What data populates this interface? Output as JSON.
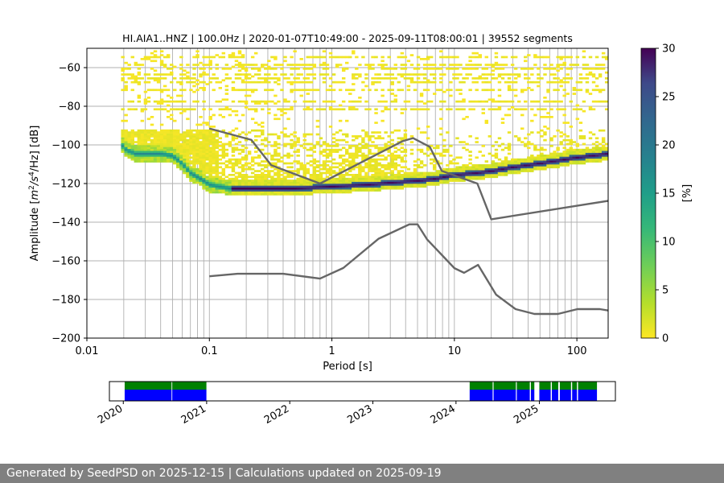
{
  "footer": {
    "text": "Generated by SeedPSD on 2025-12-15 | Calculations updated on 2025-09-19"
  },
  "chart_data": [
    {
      "type": "heatmap",
      "title": "HI.AIA1..HNZ | 100.0Hz | 2020-01-07T10:49:00 - 2025-09-11T08:00:01 | 39552 segments",
      "xlabel": "Period [s]",
      "ylabel_parts": {
        "pre": "Amplitude [",
        "m": "m",
        "exp2": "2",
        "mid": "/s",
        "exp4": "4",
        "post": "/Hz] [dB]"
      },
      "x_scale": "log",
      "xlim": [
        0.01,
        180
      ],
      "ylim": [
        -200,
        -50
      ],
      "xticks": [
        {
          "value": 0.01,
          "label": "0.01"
        },
        {
          "value": 0.1,
          "label": "0.1"
        },
        {
          "value": 1,
          "label": "1"
        },
        {
          "value": 10,
          "label": "10"
        },
        {
          "value": 100,
          "label": "100"
        }
      ],
      "yticks": [
        {
          "value": -200,
          "label": "−200"
        },
        {
          "value": -180,
          "label": "−180"
        },
        {
          "value": -160,
          "label": "−160"
        },
        {
          "value": -140,
          "label": "−140"
        },
        {
          "value": -120,
          "label": "−120"
        },
        {
          "value": -100,
          "label": "−100"
        },
        {
          "value": -80,
          "label": "−80"
        },
        {
          "value": -60,
          "label": "−60"
        }
      ],
      "grid_x_periods": [
        0.02,
        0.03,
        0.04,
        0.05,
        0.06,
        0.07,
        0.08,
        0.09,
        0.1,
        0.2,
        0.3,
        0.4,
        0.5,
        0.6,
        0.7,
        0.8,
        0.9,
        1,
        2,
        3,
        4,
        5,
        6,
        7,
        8,
        9,
        10,
        20,
        30,
        40,
        50,
        60,
        70,
        80,
        90,
        100
      ],
      "grid_y": [
        -180,
        -160,
        -140,
        -120,
        -100,
        -80,
        -60
      ],
      "colorbar": {
        "label": "[%]",
        "min": 0,
        "max": 30,
        "ticks": [
          "0",
          "5",
          "10",
          "15",
          "20",
          "25",
          "30"
        ],
        "colormap": "viridis_r"
      },
      "mode_curve": {
        "period": [
          0.019,
          0.021,
          0.025,
          0.03,
          0.035,
          0.04,
          0.05,
          0.06,
          0.07,
          0.08,
          0.09,
          0.1,
          0.12,
          0.15,
          0.2,
          0.3,
          0.5,
          1,
          2,
          3,
          5,
          7,
          10,
          15,
          20,
          30,
          50,
          100,
          180
        ],
        "db": [
          -100,
          -103,
          -105,
          -105,
          -105,
          -105,
          -106,
          -110,
          -115,
          -117,
          -119,
          -121,
          -122,
          -123,
          -123,
          -123,
          -123,
          -122,
          -121,
          -120,
          -119,
          -118,
          -116,
          -115,
          -114,
          -112,
          -110,
          -107,
          -105
        ]
      },
      "sparse_pdf": {
        "period_range": [
          0.019,
          180
        ],
        "noise_band_db": [
          -125,
          -95
        ],
        "top_rows_db": [
          -55,
          -59,
          -61,
          -64,
          -66,
          -68,
          -72,
          -78,
          -82
        ]
      },
      "nhnm": {
        "period": [
          0.1,
          0.22,
          0.32,
          0.8,
          3.8,
          4.6,
          6.3,
          7.9,
          15.4,
          20,
          354.8
        ],
        "db": [
          -91.5,
          -97.4,
          -110.5,
          -120,
          -98,
          -96.5,
          -101,
          -113.5,
          -120,
          -138.5,
          -126
        ]
      },
      "nlnm": {
        "period": [
          0.1,
          0.17,
          0.4,
          0.8,
          1.24,
          2.4,
          4.3,
          5,
          6,
          10,
          12,
          15.6,
          21.9,
          31.6,
          45,
          70,
          101,
          154,
          180
        ],
        "db": [
          -168,
          -166.7,
          -166.7,
          -169.2,
          -163.7,
          -148.6,
          -141.1,
          -141.1,
          -149,
          -163.8,
          -166.2,
          -162.1,
          -177.5,
          -185,
          -187.5,
          -187.5,
          -185,
          -185,
          -185.7
        ]
      }
    },
    {
      "type": "timeline",
      "year_ticks": [
        "2020",
        "2021",
        "2022",
        "2023",
        "2024",
        "2025"
      ],
      "range": [
        "2019-11-01",
        "2025-12-01"
      ],
      "segments": [
        {
          "start": "2020-01-07",
          "end": "2020-07-31"
        },
        {
          "start": "2020-08-03",
          "end": "2020-12-31"
        },
        {
          "start": "2024-03-01",
          "end": "2024-06-10"
        },
        {
          "start": "2024-06-14",
          "end": "2024-09-20"
        },
        {
          "start": "2024-09-24",
          "end": "2024-11-20"
        },
        {
          "start": "2024-11-25",
          "end": "2024-12-10"
        },
        {
          "start": "2025-01-01",
          "end": "2025-02-20"
        },
        {
          "start": "2025-02-25",
          "end": "2025-03-25"
        },
        {
          "start": "2025-04-01",
          "end": "2025-05-20"
        },
        {
          "start": "2025-05-25",
          "end": "2025-06-15"
        },
        {
          "start": "2025-06-20",
          "end": "2025-09-11"
        }
      ],
      "colors": {
        "top": "#008000",
        "bottom": "#0000ff"
      }
    }
  ]
}
